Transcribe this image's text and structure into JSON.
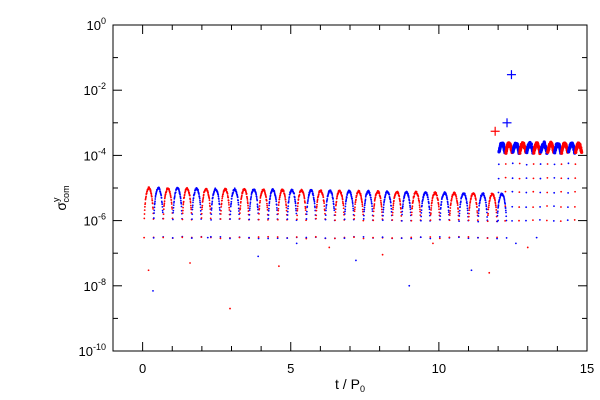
{
  "chart_data": {
    "type": "scatter",
    "xlabel": {
      "main": "t / P",
      "sub": "0"
    },
    "ylabel": {
      "main": "σ",
      "sup": "y",
      "sub": "com"
    },
    "xlim": [
      -1,
      15
    ],
    "ylim": [
      1e-10,
      1
    ],
    "yscale": "log",
    "grid": false,
    "x_ticks": [
      {
        "value": 0,
        "label": "0"
      },
      {
        "value": 5,
        "label": "5"
      },
      {
        "value": 10,
        "label": "10"
      },
      {
        "value": 15,
        "label": "15"
      }
    ],
    "y_ticks": [
      {
        "value": 1.0,
        "base": "10",
        "exp": "0"
      },
      {
        "value": 0.01,
        "base": "10",
        "exp": "-2"
      },
      {
        "value": 0.0001,
        "base": "10",
        "exp": "-4"
      },
      {
        "value": 1e-06,
        "base": "10",
        "exp": "-6"
      },
      {
        "value": 1e-08,
        "base": "10",
        "exp": "-8"
      },
      {
        "value": 1e-10,
        "base": "10",
        "exp": "-10"
      }
    ],
    "colors": {
      "series_a": "#ff0000",
      "series_b": "#0000ff"
    },
    "oscillation": {
      "t_start": 0.05,
      "t_end": 12.0,
      "period": 0.322,
      "peak": 1e-05,
      "peak_late": 7e-06,
      "trough": 3e-07
    },
    "late_phase": {
      "t_start": 12.0,
      "t_end": 14.6,
      "period": 0.235,
      "level_peak": 0.00025,
      "level_base": 0.00012,
      "dip": 1e-06
    },
    "outliers": [
      {
        "t": 0.2,
        "y": 3e-08,
        "color": "series_a"
      },
      {
        "t": 0.35,
        "y": 7e-09,
        "color": "series_b"
      },
      {
        "t": 1.6,
        "y": 5e-08,
        "color": "series_a"
      },
      {
        "t": 2.2,
        "y": 3e-07,
        "color": "series_b"
      },
      {
        "t": 2.95,
        "y": 2e-09,
        "color": "series_a"
      },
      {
        "t": 3.9,
        "y": 8e-08,
        "color": "series_b"
      },
      {
        "t": 4.6,
        "y": 4e-08,
        "color": "series_a"
      },
      {
        "t": 5.2,
        "y": 2e-07,
        "color": "series_b"
      },
      {
        "t": 6.3,
        "y": 1.5e-07,
        "color": "series_a"
      },
      {
        "t": 7.2,
        "y": 6e-08,
        "color": "series_b"
      },
      {
        "t": 8.1,
        "y": 9e-08,
        "color": "series_a"
      },
      {
        "t": 9.0,
        "y": 1e-08,
        "color": "series_b"
      },
      {
        "t": 9.8,
        "y": 2e-07,
        "color": "series_a"
      },
      {
        "t": 11.1,
        "y": 3e-08,
        "color": "series_b"
      },
      {
        "t": 11.7,
        "y": 2.5e-08,
        "color": "series_a"
      },
      {
        "t": 12.6,
        "y": 2e-07,
        "color": "series_b"
      },
      {
        "t": 13.0,
        "y": 1.5e-07,
        "color": "series_a"
      },
      {
        "t": 13.3,
        "y": 3e-07,
        "color": "series_b"
      }
    ],
    "markers": [
      {
        "t": 11.9,
        "y": 0.00055,
        "color": "series_a"
      },
      {
        "t": 12.3,
        "y": 0.001,
        "color": "series_b"
      },
      {
        "t": 12.45,
        "y": 0.03,
        "color": "series_b"
      }
    ]
  }
}
